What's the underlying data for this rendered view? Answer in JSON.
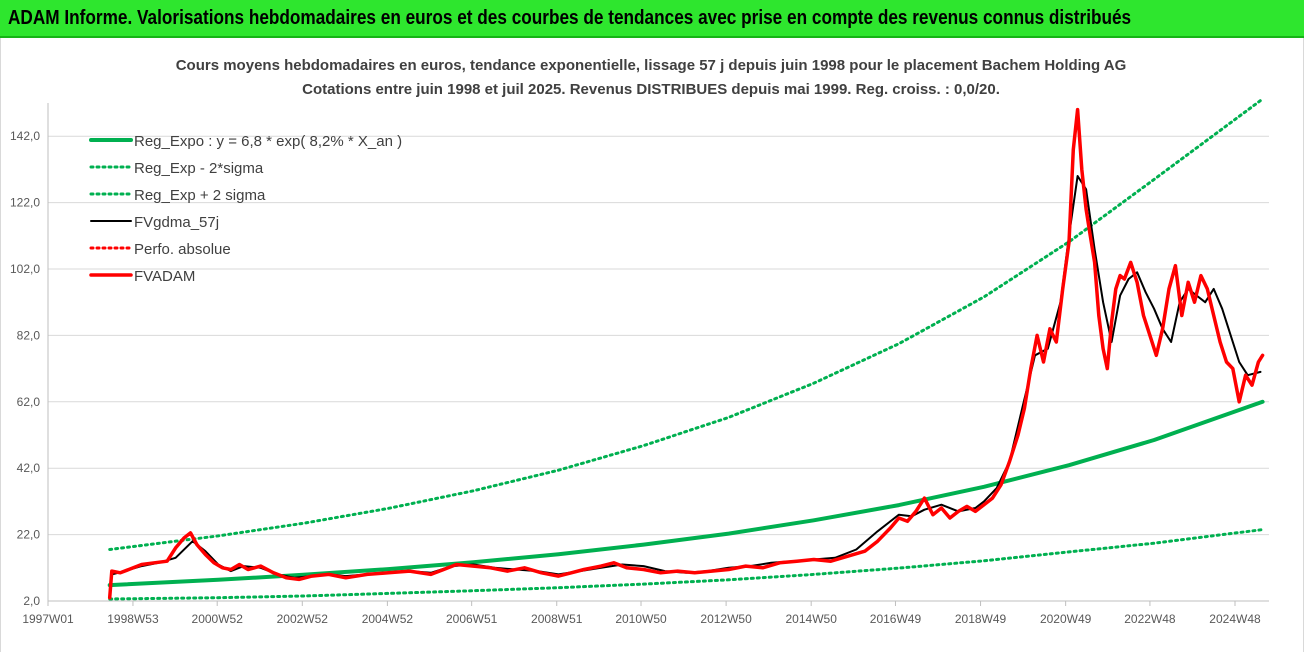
{
  "banner": {
    "text": "ADAM Informe. Valorisations hebdomadaires en euros et des courbes de tendances avec prise en compte des revenus connus distribués"
  },
  "colors": {
    "banner_bg": "#2ee62e",
    "reg_expo": "#00b050",
    "fv_adam": "#ff0000",
    "fvgdma": "#000000",
    "grid": "#d9d9d9",
    "axis_text": "#595959"
  },
  "chart_data": {
    "type": "line",
    "title": "Cours moyens hebdomadaires en euros, tendance exponentielle, lissage 57 j depuis juin 1998 pour le placement Bachem Holding AG",
    "subtitle": "Cotations entre juin 1998 et juil 2025.  Revenus DISTRIBUES depuis mai 1999.  Reg. croiss. : 0,0/20.",
    "x_ticks": [
      "1997W01",
      "1998W53",
      "2000W52",
      "2002W52",
      "2004W52",
      "2006W51",
      "2008W51",
      "2010W50",
      "2012W50",
      "2014W50",
      "2016W49",
      "2018W49",
      "2020W49",
      "2022W48",
      "2024W48"
    ],
    "y_ticks": [
      "2,0",
      "22,0",
      "42,0",
      "62,0",
      "82,0",
      "102,0",
      "122,0",
      "142,0"
    ],
    "xlim": [
      1997.0,
      2025.7
    ],
    "ylim": [
      2,
      152
    ],
    "grid": "horizontal",
    "legend_position": "top-left",
    "legend": [
      {
        "label": "Reg_Expo : y = 6,8 * exp( 8,2% *  X_an )",
        "series": "reg_expo"
      },
      {
        "label": "Reg_Exp - 2*sigma",
        "series": "reg_minus"
      },
      {
        "label": "Reg_Exp + 2 sigma",
        "series": "reg_plus"
      },
      {
        "label": "FVgdma_57j",
        "series": "fvgdma"
      },
      {
        "label": "Perfo. absolue",
        "series": "perfo"
      },
      {
        "label": "FVADAM",
        "series": "fvadam"
      }
    ],
    "series": [
      {
        "name": "Reg_Expo : y = 6,8 * exp( 8,2% *  X_an )",
        "key": "reg_expo",
        "style": "solid",
        "color": "#00b050",
        "x": [
          1998.45,
          2001,
          2003,
          2005,
          2007,
          2009,
          2011,
          2013,
          2015,
          2017,
          2019,
          2021,
          2023,
          2025.55
        ],
        "y": [
          6.8,
          8.4,
          9.9,
          11.6,
          13.7,
          16.1,
          19.0,
          22.3,
          26.3,
          30.9,
          36.4,
          42.9,
          50.5,
          62.0
        ]
      },
      {
        "name": "Reg_Exp - 2*sigma",
        "key": "reg_minus",
        "style": "dotted",
        "color": "#00b050",
        "x": [
          1998.45,
          2001,
          2003,
          2005,
          2007,
          2009,
          2011,
          2013,
          2015,
          2017,
          2019,
          2021,
          2023,
          2025.55
        ],
        "y": [
          2.6,
          3.0,
          3.5,
          4.3,
          5.1,
          6.0,
          7.1,
          8.4,
          10.0,
          11.9,
          14.1,
          16.8,
          19.4,
          23.5
        ]
      },
      {
        "name": "Reg_Exp + 2 sigma",
        "key": "reg_plus",
        "style": "dotted",
        "color": "#00b050",
        "x": [
          1998.45,
          2001,
          2003,
          2005,
          2007,
          2009,
          2011,
          2013,
          2015,
          2017,
          2019,
          2021,
          2023,
          2025.55
        ],
        "y": [
          17.5,
          21.6,
          25.4,
          29.9,
          35.2,
          41.4,
          48.8,
          57.3,
          67.6,
          79.5,
          93.6,
          110.2,
          129.0,
          160.0
        ]
      },
      {
        "name": "FVgdma_57j",
        "key": "fvgdma",
        "style": "solid",
        "color": "#000000",
        "x": [
          1998.5,
          1998.8,
          1999.2,
          1999.6,
          2000.0,
          2000.4,
          2000.7,
          2001.0,
          2001.3,
          2001.6,
          2002.0,
          2002.4,
          2002.8,
          2003.2,
          2003.6,
          2004.0,
          2004.5,
          2005.0,
          2005.5,
          2006.0,
          2006.5,
          2007.0,
          2007.5,
          2008.0,
          2008.5,
          2009.0,
          2009.5,
          2010.0,
          2010.5,
          2011.0,
          2011.5,
          2012.0,
          2012.5,
          2013.0,
          2013.5,
          2014.0,
          2014.5,
          2015.0,
          2015.5,
          2016.0,
          2016.5,
          2017.0,
          2017.3,
          2017.6,
          2018.0,
          2018.4,
          2018.8,
          2019.0,
          2019.3,
          2019.6,
          2019.9,
          2020.2,
          2020.5,
          2020.8,
          2021.0,
          2021.2,
          2021.4,
          2021.6,
          2021.8,
          2022.0,
          2022.2,
          2022.4,
          2022.6,
          2022.8,
          2023.0,
          2023.2,
          2023.4,
          2023.6,
          2023.8,
          2024.0,
          2024.2,
          2024.4,
          2024.6,
          2024.8,
          2025.0,
          2025.2,
          2025.5
        ],
        "y": [
          10.0,
          11.0,
          12.5,
          13.5,
          15.0,
          20.0,
          17.0,
          13.0,
          11.0,
          12.5,
          12.0,
          10.0,
          9.0,
          9.5,
          10.0,
          9.5,
          10.0,
          10.5,
          11.0,
          10.5,
          12.5,
          13.0,
          12.0,
          11.5,
          11.0,
          10.0,
          11.0,
          12.0,
          13.0,
          12.5,
          11.0,
          10.5,
          11.0,
          12.0,
          12.5,
          13.5,
          14.0,
          14.5,
          15.0,
          17.5,
          23.0,
          28.0,
          27.5,
          29.5,
          31.0,
          29.0,
          30.0,
          32.0,
          36.0,
          44.0,
          60.0,
          76.0,
          78.0,
          92.0,
          112.0,
          130.0,
          126.0,
          108.0,
          92.0,
          80.0,
          94.0,
          99.0,
          101.0,
          95.0,
          90.0,
          84.0,
          80.0,
          92.0,
          96.0,
          94.0,
          92.0,
          96.0,
          90.0,
          82.0,
          74.0,
          70.0,
          71.0
        ]
      },
      {
        "name": "Perfo. absolue",
        "key": "perfo",
        "style": "dotted",
        "color": "#ff0000",
        "x": [],
        "y": []
      },
      {
        "name": "FVADAM",
        "key": "fvadam",
        "style": "solid",
        "color": "#ff0000",
        "x": [
          1998.45,
          1998.5,
          1998.7,
          1998.9,
          1999.2,
          1999.5,
          1999.8,
          2000.0,
          2000.2,
          2000.35,
          2000.5,
          2000.7,
          2000.9,
          2001.1,
          2001.3,
          2001.5,
          2001.7,
          2002.0,
          2002.3,
          2002.6,
          2002.9,
          2003.2,
          2003.6,
          2004.0,
          2004.5,
          2005.0,
          2005.5,
          2006.0,
          2006.3,
          2006.6,
          2007.0,
          2007.4,
          2007.8,
          2008.2,
          2008.6,
          2009.0,
          2009.3,
          2009.6,
          2010.0,
          2010.3,
          2010.6,
          2011.0,
          2011.4,
          2011.8,
          2012.2,
          2012.6,
          2013.0,
          2013.4,
          2013.8,
          2014.2,
          2014.6,
          2015.0,
          2015.4,
          2015.8,
          2016.2,
          2016.5,
          2016.8,
          2017.0,
          2017.2,
          2017.4,
          2017.6,
          2017.8,
          2018.0,
          2018.2,
          2018.4,
          2018.6,
          2018.8,
          2019.0,
          2019.2,
          2019.4,
          2019.6,
          2019.8,
          2019.95,
          2020.1,
          2020.25,
          2020.4,
          2020.55,
          2020.7,
          2020.85,
          2021.0,
          2021.1,
          2021.2,
          2021.3,
          2021.4,
          2021.5,
          2021.6,
          2021.7,
          2021.8,
          2021.9,
          2022.0,
          2022.1,
          2022.2,
          2022.3,
          2022.45,
          2022.6,
          2022.75,
          2022.9,
          2023.05,
          2023.2,
          2023.35,
          2023.5,
          2023.65,
          2023.8,
          2023.95,
          2024.1,
          2024.25,
          2024.4,
          2024.55,
          2024.7,
          2024.85,
          2025.0,
          2025.15,
          2025.3,
          2025.45,
          2025.55
        ],
        "y": [
          3.0,
          11.0,
          10.5,
          11.5,
          13.0,
          13.5,
          14.0,
          18.0,
          21.0,
          22.5,
          19.0,
          16.0,
          13.5,
          12.0,
          11.5,
          13.0,
          11.5,
          12.5,
          10.5,
          9.0,
          8.5,
          9.5,
          10.0,
          9.0,
          10.0,
          10.5,
          11.0,
          10.0,
          11.5,
          13.0,
          12.5,
          12.0,
          11.0,
          12.0,
          10.5,
          9.5,
          10.5,
          11.5,
          12.5,
          13.5,
          12.0,
          11.5,
          10.5,
          11.0,
          10.5,
          11.0,
          11.5,
          12.5,
          12.0,
          13.5,
          14.0,
          14.5,
          14.0,
          15.5,
          17.0,
          20.0,
          24.0,
          27.0,
          26.0,
          29.0,
          33.0,
          28.0,
          30.0,
          27.0,
          29.0,
          30.5,
          29.0,
          31.0,
          33.0,
          37.0,
          44.0,
          52.0,
          60.0,
          72.0,
          82.0,
          74.0,
          84.0,
          80.0,
          96.0,
          110.0,
          138.0,
          150.0,
          132.0,
          120.0,
          112.0,
          104.0,
          88.0,
          78.0,
          72.0,
          86.0,
          96.0,
          100.0,
          99.0,
          104.0,
          98.0,
          88.0,
          82.0,
          76.0,
          84.0,
          96.0,
          103.0,
          88.0,
          98.0,
          92.0,
          100.0,
          96.0,
          88.0,
          80.0,
          74.0,
          72.0,
          62.0,
          70.0,
          67.0,
          74.0,
          76.0
        ]
      }
    ]
  }
}
